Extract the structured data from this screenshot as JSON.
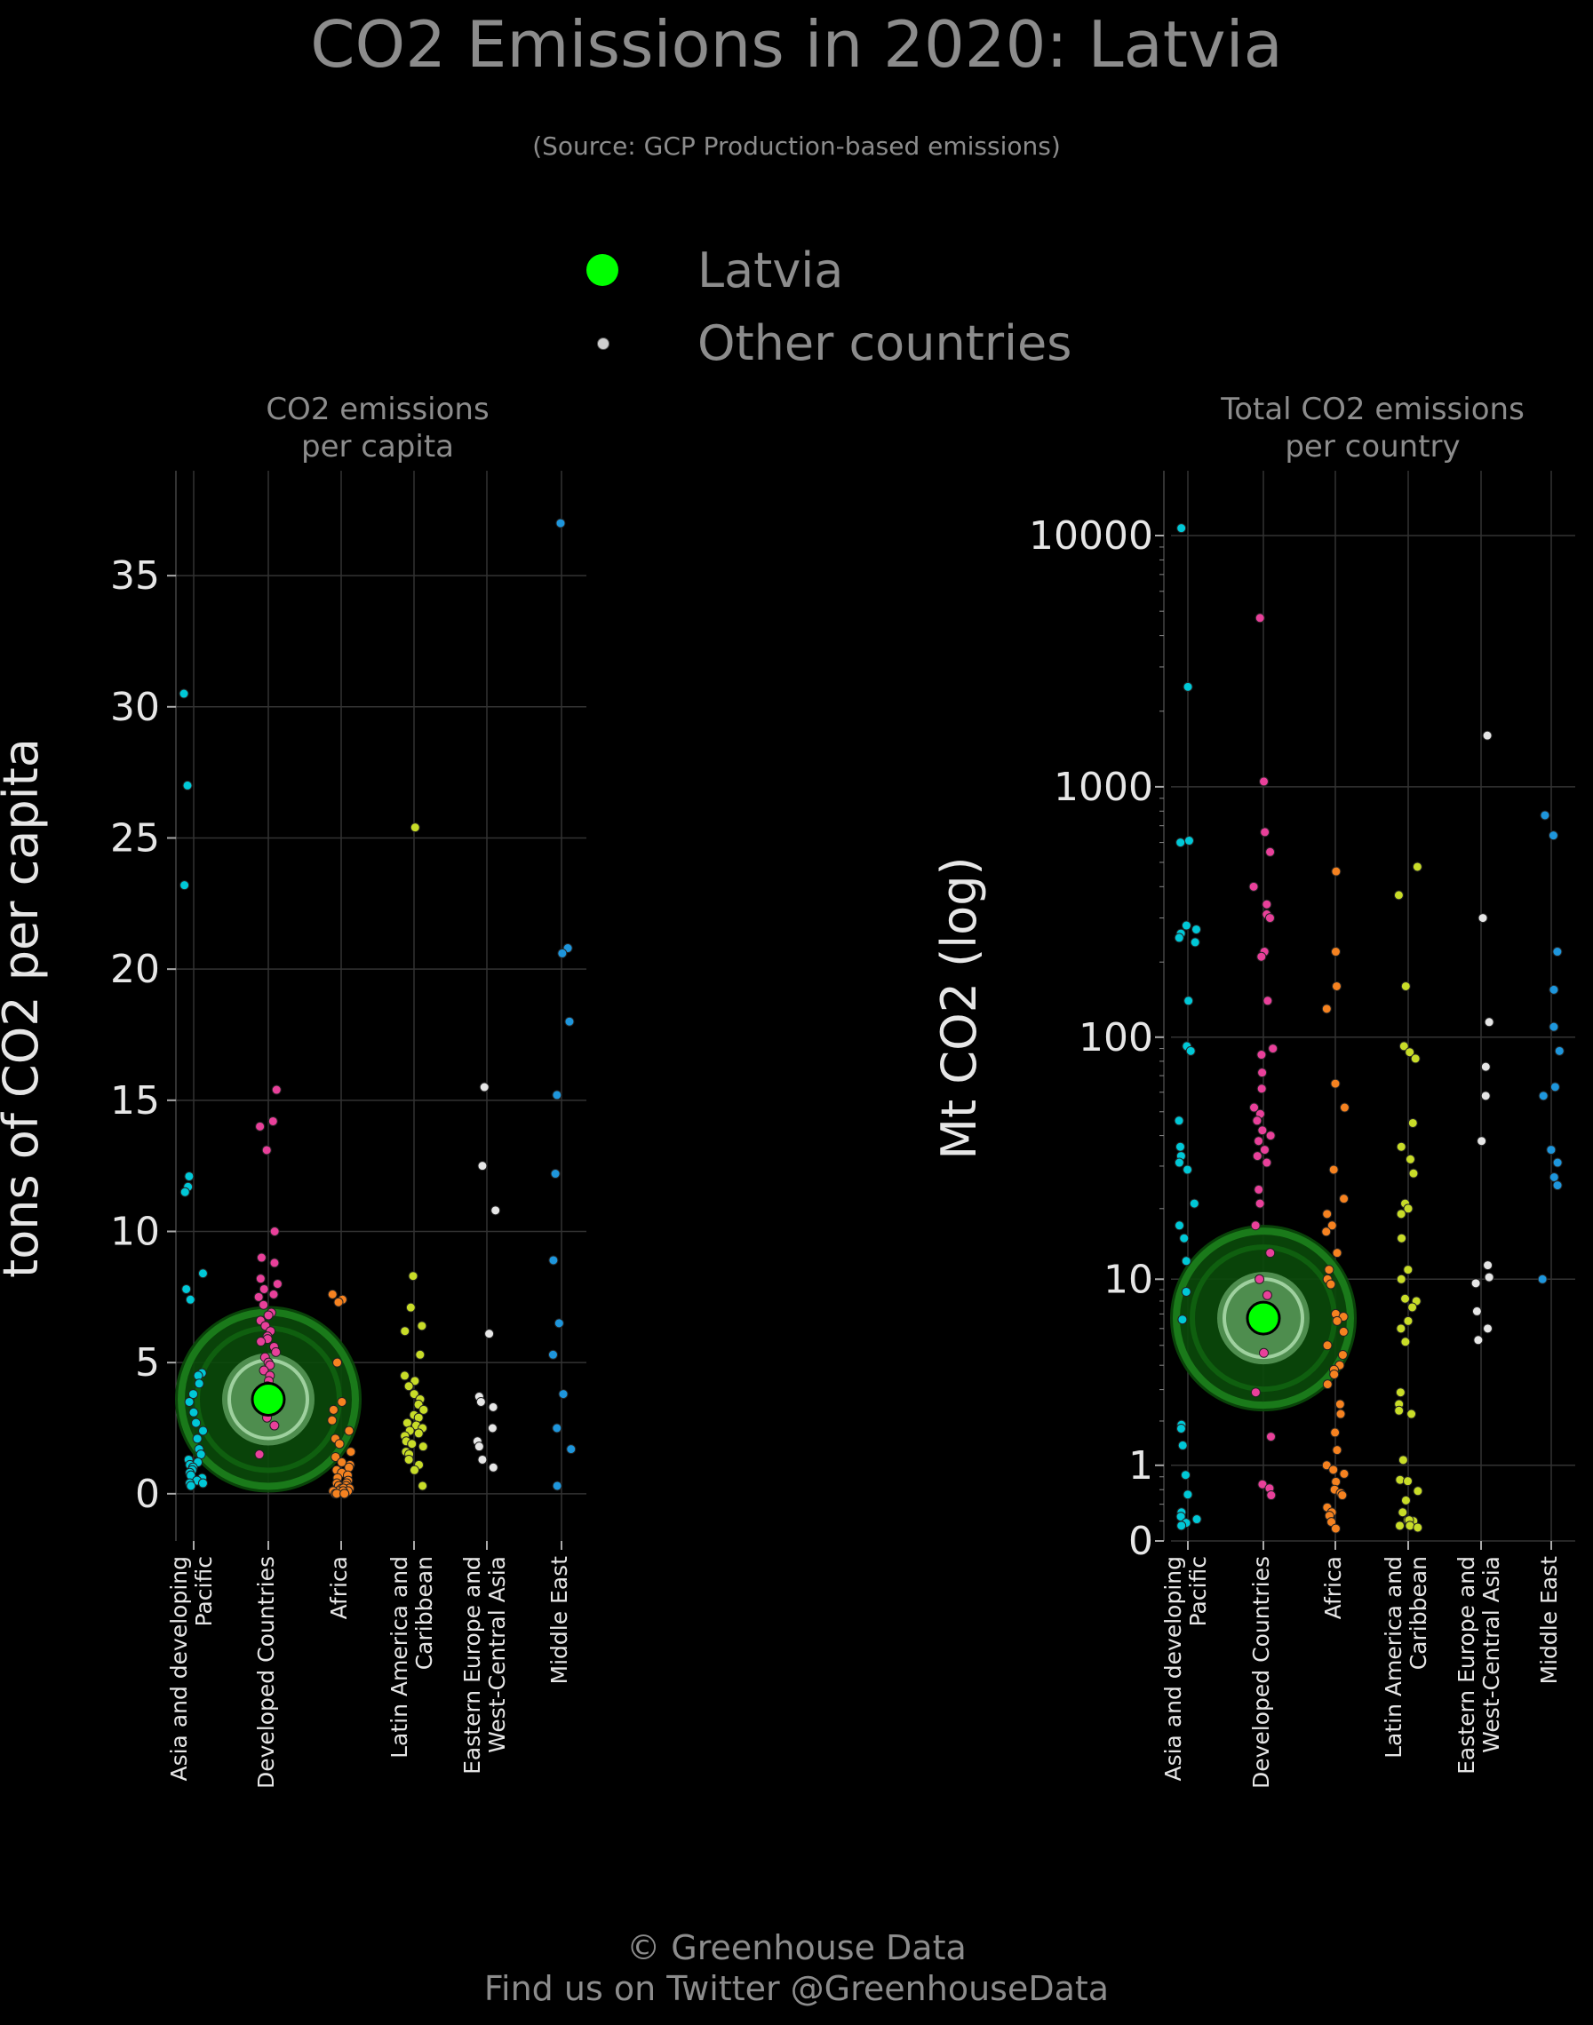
{
  "title": "CO2 Emissions in 2020: Latvia",
  "subtitle": "(Source: GCP Production-based emissions)",
  "legend": {
    "highlight": "Latvia",
    "others": "Other countries"
  },
  "footer": {
    "line1": "© Greenhouse Data",
    "line2": "Find us on Twitter @GreenhouseData"
  },
  "colors": {
    "background": "#000000",
    "highlight": "#00ff00",
    "regions": {
      "Asia and developing Pacific": "#00c8d7",
      "Developed Countries": "#e8409a",
      "Africa": "#f58220",
      "Latin America and Caribbean": "#c8dc28",
      "Eastern Europe and West-Central Asia": "#e6e6e6",
      "Middle East": "#1e96dc"
    }
  },
  "chart_data": [
    {
      "type": "scatter",
      "title": "CO2 emissions\nper capita",
      "ylabel": "tons of CO2 per capita",
      "ylim": [
        -1.8,
        39
      ],
      "yticks": [
        0,
        5,
        10,
        15,
        20,
        25,
        30,
        35
      ],
      "scale": "linear",
      "categories": [
        "Asia and developing\nPacific",
        "Developed Countries",
        "Africa",
        "Latin America and\nCaribbean",
        "Eastern Europe and\nWest-Central Asia",
        "Middle East"
      ],
      "highlight": {
        "name": "Latvia",
        "category_index": 1,
        "value": 3.6
      },
      "series": [
        {
          "values": [
            30.5,
            27.0,
            23.2,
            12.1,
            11.7,
            11.5,
            8.4,
            7.8,
            7.4,
            4.6,
            4.5,
            4.2,
            3.8,
            3.5,
            3.1,
            2.7,
            2.4,
            2.1,
            1.7,
            1.5,
            1.3,
            1.2,
            1.1,
            1.0,
            0.9,
            0.8,
            0.7,
            0.6,
            0.5,
            0.4,
            0.4,
            0.3
          ]
        },
        {
          "values": [
            15.4,
            14.2,
            14.0,
            13.1,
            10.0,
            9.0,
            8.8,
            8.2,
            8.0,
            7.8,
            7.6,
            7.5,
            7.2,
            6.9,
            6.8,
            6.6,
            6.4,
            6.2,
            6.0,
            5.9,
            5.8,
            5.6,
            5.4,
            5.2,
            5.0,
            4.9,
            4.7,
            4.5,
            4.3,
            4.1,
            3.9,
            3.7,
            3.5,
            3.3,
            3.1,
            2.9,
            2.6,
            1.5
          ]
        },
        {
          "values": [
            7.6,
            7.4,
            7.3,
            5.0,
            3.5,
            3.2,
            2.8,
            2.4,
            2.1,
            1.9,
            1.6,
            1.4,
            1.2,
            1.1,
            1.0,
            0.9,
            0.8,
            0.7,
            0.6,
            0.5,
            0.4,
            0.4,
            0.3,
            0.3,
            0.2,
            0.2,
            0.2,
            0.1,
            0.1,
            0.1,
            0.1,
            0.0,
            0.0,
            0.0,
            0.0
          ]
        },
        {
          "values": [
            25.4,
            8.3,
            7.1,
            6.4,
            6.2,
            5.3,
            4.5,
            4.3,
            4.1,
            3.8,
            3.6,
            3.4,
            3.2,
            3.0,
            2.9,
            2.7,
            2.6,
            2.5,
            2.4,
            2.3,
            2.2,
            2.0,
            1.9,
            1.8,
            1.6,
            1.5,
            1.3,
            1.1,
            0.9,
            0.3
          ]
        },
        {
          "values": [
            15.5,
            12.5,
            10.8,
            6.1,
            3.7,
            3.5,
            3.3,
            2.5,
            2.0,
            1.8,
            1.3,
            1.0
          ]
        },
        {
          "values": [
            37.0,
            20.8,
            20.6,
            18.0,
            15.2,
            12.2,
            8.9,
            6.5,
            5.3,
            3.8,
            2.5,
            1.7,
            0.3
          ]
        }
      ]
    },
    {
      "type": "scatter",
      "title": "Total CO2 emissions\nper country",
      "ylabel": "Mt CO2 (log)",
      "scale": "log",
      "ylim": [
        0,
        20000
      ],
      "yticks": [
        0,
        1,
        10,
        100,
        1000,
        10000
      ],
      "categories": [
        "Asia and developing\nPacific",
        "Developed Countries",
        "Africa",
        "Latin America and\nCaribbean",
        "Eastern Europe and\nWest-Central Asia",
        "Middle East"
      ],
      "highlight": {
        "name": "Latvia",
        "category_index": 1,
        "value": 6.7
      },
      "series": [
        {
          "values": [
            10700,
            2500,
            610,
            600,
            280,
            270,
            260,
            250,
            240,
            140,
            92,
            88,
            46,
            36,
            33,
            31,
            29,
            21,
            17,
            15,
            12,
            8.8,
            6.6,
            1.9,
            1.8,
            1.4,
            0.83,
            0.53,
            0.3,
            0.25,
            0.22,
            0.18,
            0.15
          ]
        },
        {
          "values": [
            4700,
            1050,
            660,
            550,
            400,
            340,
            310,
            300,
            220,
            210,
            140,
            90,
            85,
            72,
            62,
            52,
            49,
            46,
            42,
            40,
            38,
            35,
            33,
            31,
            24,
            21,
            17,
            13,
            10,
            8.5,
            4.6,
            2.9,
            1.6,
            0.68,
            0.62,
            0.52
          ]
        },
        {
          "values": [
            460,
            220,
            160,
            130,
            65,
            52,
            29,
            22,
            19,
            17,
            16,
            13,
            11,
            10,
            9.5,
            7.0,
            6.8,
            6.5,
            5.8,
            5.0,
            4.5,
            4.0,
            3.8,
            3.6,
            3.2,
            2.5,
            2.2,
            1.7,
            1.3,
            1.0,
            0.92,
            0.85,
            0.72,
            0.6,
            0.55,
            0.52,
            0.36,
            0.3,
            0.26,
            0.19,
            0.12
          ]
        },
        {
          "values": [
            480,
            370,
            160,
            92,
            87,
            82,
            45,
            36,
            32,
            28,
            21,
            20,
            19,
            15,
            11,
            10,
            8.2,
            8.0,
            7.5,
            6.5,
            6.0,
            5.2,
            2.9,
            2.5,
            2.3,
            2.2,
            1.1,
            0.75,
            0.73,
            0.58,
            0.45,
            0.3,
            0.21,
            0.2,
            0.21,
            0.15,
            0.15,
            0.13
          ]
        },
        {
          "values": [
            1600,
            300,
            115,
            76,
            58,
            38,
            11.5,
            10.2,
            9.6,
            7.2,
            6.0,
            5.3
          ]
        },
        {
          "values": [
            770,
            640,
            220,
            155,
            110,
            88,
            63,
            58,
            35,
            31,
            27,
            25,
            10
          ]
        }
      ]
    }
  ]
}
